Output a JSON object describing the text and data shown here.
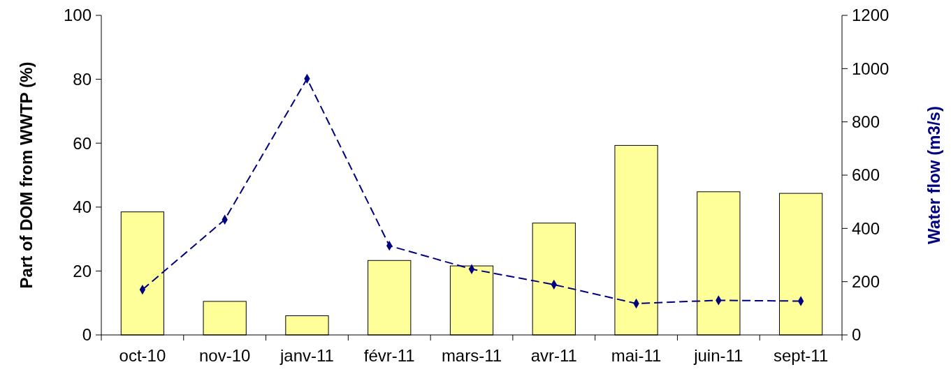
{
  "chart_data": {
    "type": "bar",
    "categories": [
      "oct-10",
      "nov-10",
      "janv-11",
      "févr-11",
      "mars-11",
      "avr-11",
      "mai-11",
      "juin-11",
      "sept-11"
    ],
    "series": [
      {
        "color": "#ffff99",
        "values": [
          38.5,
          10.5,
          6,
          23.3,
          21.6,
          35,
          59.3,
          44.8,
          44.3
        ]
      },
      {
        "type": "line",
        "axis": "y2",
        "color": "#000080",
        "marker": "diamond",
        "line_style": "dashed",
        "values": [
          170,
          433,
          962,
          335,
          247,
          189,
          118,
          130,
          127
        ]
      }
    ],
    "ylabel": "Part of DOM from WWTP (%)",
    "y2label": "Water flow (m3/s)",
    "ylim": [
      0,
      100
    ],
    "yticks": [
      0,
      20,
      40,
      60,
      80,
      100
    ],
    "y2lim": [
      0,
      1200
    ],
    "y2ticks": [
      0,
      200,
      400,
      600,
      800,
      1000,
      1200
    ],
    "grid": false
  }
}
